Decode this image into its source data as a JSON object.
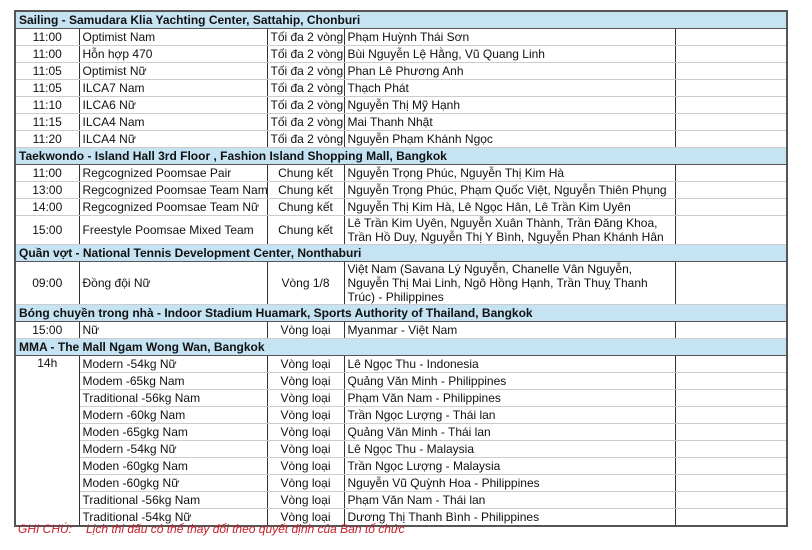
{
  "sections": [
    {
      "title": "Sailing - Samudara Klia Yachting Center, Sattahip, Chonburi",
      "rows": [
        {
          "time": "11:00",
          "event": "Optimist Nam",
          "round": "Tối đa 2 vòng",
          "athletes": "Phạm Huỳnh Thái Sơn"
        },
        {
          "time": "11:00",
          "event": "Hỗn hợp 470",
          "round": "Tối đa 2 vòng",
          "athletes": "Bùi Nguyễn Lệ Hằng, Vũ Quang Linh"
        },
        {
          "time": "11:05",
          "event": "Optimist Nữ",
          "round": "Tối đa 2 vòng",
          "athletes": "Phan Lê Phương Anh"
        },
        {
          "time": "11:05",
          "event": "ILCA7 Nam",
          "round": "Tối đa 2 vòng",
          "athletes": "Thạch Phát"
        },
        {
          "time": "11:10",
          "event": "ILCA6 Nữ",
          "round": "Tối đa 2 vòng",
          "athletes": "Nguyễn Thị Mỹ Hạnh"
        },
        {
          "time": "11:15",
          "event": "ILCA4 Nam",
          "round": "Tối đa 2 vòng",
          "athletes": "Mai Thanh Nhật"
        },
        {
          "time": "11:20",
          "event": "ILCA4 Nữ",
          "round": "Tối đa 2 vòng",
          "athletes": "Nguyễn Phạm Khánh Ngọc"
        }
      ]
    },
    {
      "title": "Taekwondo - Island Hall 3rd Floor , Fashion Island Shopping Mall, Bangkok",
      "rows": [
        {
          "time": "11:00",
          "event": "Regcognized Poomsae Pair",
          "round": "Chung kết",
          "athletes": "Nguyễn Trọng Phúc, Nguyễn Thị Kim Hà"
        },
        {
          "time": "13:00",
          "event": "Regcognized Poomsae Team Nam",
          "round": "Chung kết",
          "athletes": "Nguyễn Trọng Phúc, Phạm Quốc Việt, Nguyễn Thiên Phụng"
        },
        {
          "time": "14:00",
          "event": "Regcognized Poomsae Team Nữ",
          "round": "Chung kết",
          "athletes": "Nguyễn Thị Kim Hà, Lê Ngọc Hân, Lê Trần Kim Uyên"
        },
        {
          "time": "15:00",
          "event": "Freestyle Poomsae Mixed Team",
          "round": "Chung kết",
          "athletes": "Lê Trần Kim Uyên, Nguyễn Xuân Thành, Trần Đăng Khoa, Trần Hồ Duy, Nguyễn Thị Y Bình, Nguyễn Phan Khánh Hân"
        }
      ]
    },
    {
      "title": "Quần vợt - National Tennis Development Center, Nonthaburi",
      "rows": [
        {
          "time": "09:00",
          "event": "Đồng đội Nữ",
          "round": "Vòng 1/8",
          "athletes": "Việt Nam (Savana Lý Nguyễn, Chanelle Vân Nguyễn, Nguyễn Thị Mai Linh, Ngô Hồng Hạnh, Trần Thuỵ Thanh Trúc) - Philippines"
        }
      ]
    },
    {
      "title": "Bóng chuyền trong nhà - Indoor Stadium Huamark, Sports Authority of Thailand, Bangkok",
      "rows": [
        {
          "time": "15:00",
          "event": "Nữ",
          "round": "Vòng loại",
          "athletes": "Myanmar - Việt Nam"
        }
      ]
    },
    {
      "title": "MMA - The Mall Ngam Wong Wan, Bangkok",
      "merged_time": "14h",
      "rows": [
        {
          "event": "Modern -54kg Nữ",
          "round": "Vòng loại",
          "athletes": "Lê Ngọc Thu - Indonesia"
        },
        {
          "event": "Modem -65kg Nam",
          "round": "Vòng loại",
          "athletes": "Quảng Văn Minh - Philippines"
        },
        {
          "event": "Traditional -56kg Nam",
          "round": "Vòng loại",
          "athletes": "Phạm Văn Nam - Philippines"
        },
        {
          "event": "Modern -60kg Nam",
          "round": "Vòng loại",
          "athletes": "Trần Ngọc Lượng - Thái lan"
        },
        {
          "event": "Moden -65gkg Nam",
          "round": "Vòng loại",
          "athletes": "Quảng Văn Minh - Thái lan"
        },
        {
          "event": "Modern -54kg Nữ",
          "round": "Vòng loại",
          "athletes": "Lê Ngọc Thu - Malaysia"
        },
        {
          "event": "Moden -60gkg Nam",
          "round": "Vòng loại",
          "athletes": "Trần Ngọc Lượng - Malaysia"
        },
        {
          "event": "Moden -60gkg Nữ",
          "round": "Vòng loại",
          "athletes": "Nguyễn Vũ Quỳnh Hoa - Philippines"
        },
        {
          "event": "Traditional -56kg Nam",
          "round": "Vòng loại",
          "athletes": "Phạm Văn Nam - Thái lan"
        },
        {
          "event": "Traditional -54kg Nữ",
          "round": "Vòng loại",
          "athletes": "Dương Thị Thanh Bình - Philippines"
        }
      ]
    }
  ],
  "note": {
    "label": "GHI CHÚ:",
    "text": "Lịch thi đấu có thể thay đổi theo quyết định của Ban tổ chức"
  },
  "colors": {
    "section_bg": "#c5e3f3",
    "note": "#c8202a"
  }
}
